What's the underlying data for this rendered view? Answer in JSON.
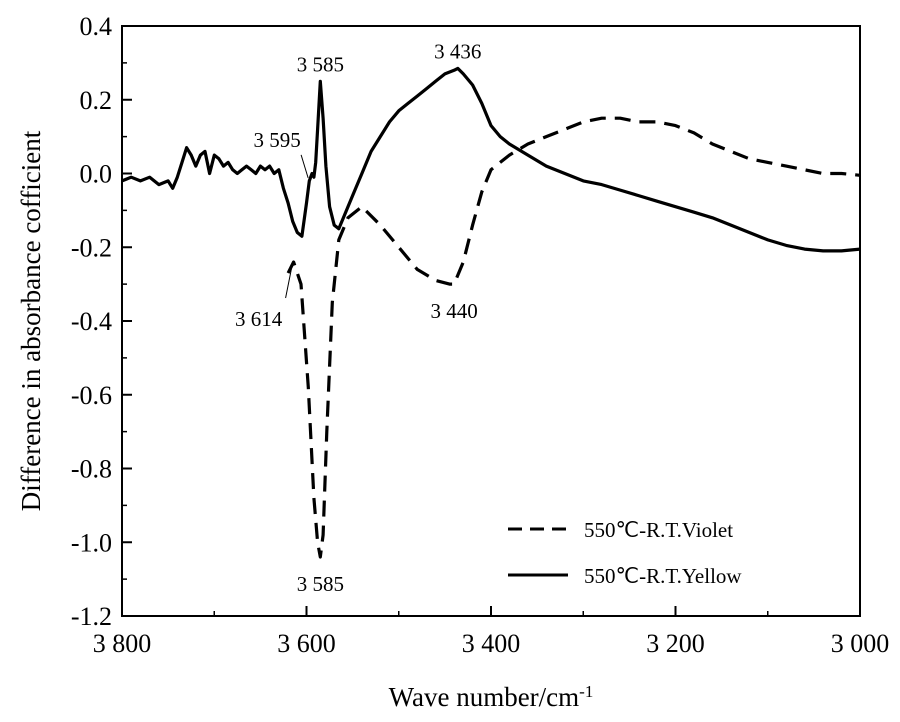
{
  "chart_data": {
    "type": "line",
    "xlabel": "Wave number/cm",
    "xlabel_sup": "-1",
    "ylabel": "Difference in absorbance cofficient",
    "xlim": [
      3800,
      3000
    ],
    "ylim": [
      -1.2,
      0.4
    ],
    "x_reversed": true,
    "x_ticks": [
      3800,
      3600,
      3400,
      3200,
      3000
    ],
    "x_tick_labels": [
      "3 800",
      "3 600",
      "3 400",
      "3 200",
      "3 000"
    ],
    "y_ticks": [
      0.4,
      0.2,
      0.0,
      -0.2,
      -0.4,
      -0.6,
      -0.8,
      -1.0,
      -1.2
    ],
    "y_tick_labels": [
      "0.4",
      "0.2",
      "0.0",
      "-0.2",
      "-0.4",
      "-0.6",
      "-0.8",
      "-1.0",
      "-1.2"
    ],
    "legend_position": "bottom-right",
    "series": [
      {
        "name": "550℃-R.T.Violet",
        "style": "dashed",
        "x": [
          3620,
          3614,
          3606,
          3598,
          3592,
          3588,
          3585,
          3582,
          3578,
          3572,
          3565,
          3555,
          3540,
          3520,
          3500,
          3480,
          3460,
          3445,
          3440,
          3430,
          3420,
          3410,
          3400,
          3390,
          3380,
          3360,
          3340,
          3320,
          3300,
          3280,
          3260,
          3240,
          3220,
          3200,
          3180,
          3160,
          3140,
          3120,
          3100,
          3080,
          3060,
          3040,
          3020,
          3000
        ],
        "y": [
          -0.27,
          -0.24,
          -0.3,
          -0.58,
          -0.88,
          -1.0,
          -1.04,
          -0.98,
          -0.7,
          -0.35,
          -0.18,
          -0.12,
          -0.09,
          -0.14,
          -0.2,
          -0.26,
          -0.29,
          -0.3,
          -0.3,
          -0.24,
          -0.14,
          -0.05,
          0.01,
          0.03,
          0.05,
          0.08,
          0.1,
          0.12,
          0.14,
          0.15,
          0.15,
          0.14,
          0.14,
          0.13,
          0.11,
          0.08,
          0.06,
          0.04,
          0.03,
          0.02,
          0.01,
          0.0,
          0.0,
          -0.005
        ]
      },
      {
        "name": "550℃-R.T.Yellow",
        "style": "solid",
        "x": [
          3800,
          3790,
          3780,
          3770,
          3760,
          3750,
          3745,
          3740,
          3735,
          3730,
          3725,
          3720,
          3715,
          3710,
          3705,
          3700,
          3695,
          3690,
          3685,
          3680,
          3675,
          3670,
          3665,
          3660,
          3655,
          3650,
          3645,
          3640,
          3635,
          3630,
          3625,
          3620,
          3615,
          3610,
          3605,
          3600,
          3597,
          3594,
          3592,
          3590,
          3588,
          3585,
          3582,
          3579,
          3575,
          3570,
          3565,
          3560,
          3550,
          3540,
          3530,
          3520,
          3510,
          3500,
          3490,
          3480,
          3470,
          3460,
          3450,
          3440,
          3436,
          3430,
          3420,
          3410,
          3400,
          3390,
          3380,
          3360,
          3340,
          3320,
          3300,
          3280,
          3260,
          3240,
          3220,
          3200,
          3180,
          3160,
          3140,
          3120,
          3100,
          3080,
          3060,
          3040,
          3020,
          3000
        ],
        "y": [
          -0.02,
          -0.01,
          -0.02,
          -0.01,
          -0.03,
          -0.02,
          -0.04,
          -0.01,
          0.03,
          0.07,
          0.05,
          0.02,
          0.05,
          0.06,
          0.0,
          0.05,
          0.04,
          0.02,
          0.03,
          0.01,
          0.0,
          0.01,
          0.02,
          0.01,
          0.0,
          0.02,
          0.01,
          0.02,
          0.0,
          0.01,
          -0.04,
          -0.08,
          -0.13,
          -0.16,
          -0.17,
          -0.08,
          -0.02,
          0.0,
          -0.01,
          0.03,
          0.12,
          0.25,
          0.15,
          0.02,
          -0.09,
          -0.14,
          -0.15,
          -0.12,
          -0.06,
          0.0,
          0.06,
          0.1,
          0.14,
          0.17,
          0.19,
          0.21,
          0.23,
          0.25,
          0.27,
          0.28,
          0.285,
          0.27,
          0.24,
          0.19,
          0.13,
          0.1,
          0.08,
          0.05,
          0.02,
          0.0,
          -0.02,
          -0.03,
          -0.045,
          -0.06,
          -0.075,
          -0.09,
          -0.105,
          -0.12,
          -0.14,
          -0.16,
          -0.18,
          -0.195,
          -0.205,
          -0.21,
          -0.21,
          -0.205
        ]
      }
    ],
    "annotations": [
      {
        "text": "3 585",
        "x": 3585,
        "y": 0.25,
        "placement": "above"
      },
      {
        "text": "3 436",
        "x": 3436,
        "y": 0.285,
        "placement": "above"
      },
      {
        "text": "3 595",
        "x": 3595,
        "y": -0.02,
        "placement": "leader-up-left"
      },
      {
        "text": "3 614",
        "x": 3614,
        "y": -0.24,
        "placement": "leader-down-left"
      },
      {
        "text": "3 440",
        "x": 3440,
        "y": -0.3,
        "placement": "below"
      },
      {
        "text": "3 585",
        "x": 3585,
        "y": -1.04,
        "placement": "below"
      }
    ]
  }
}
